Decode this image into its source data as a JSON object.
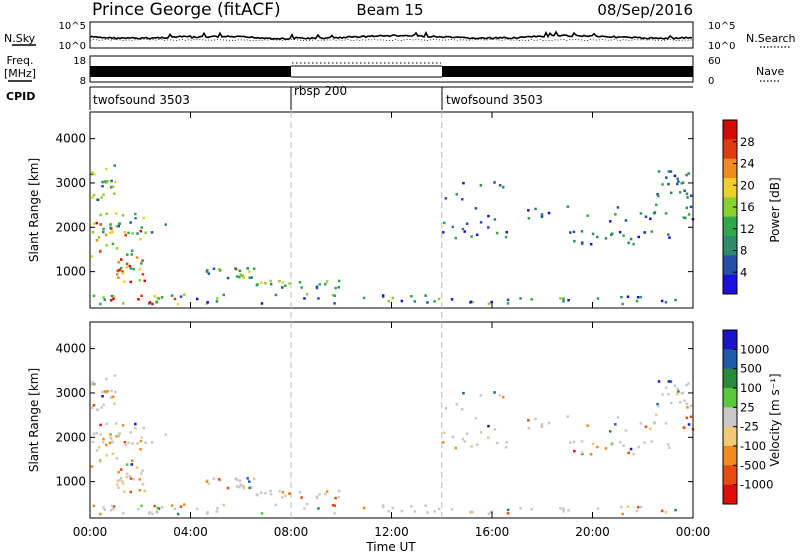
{
  "header": {
    "station": "Prince George (fitACF)",
    "beam": "Beam 15",
    "date": "08/Sep/2016"
  },
  "chart_data": [
    {
      "type": "line",
      "panel": "noise",
      "left_label": "N.Sky",
      "right_label": "N.Search",
      "left_ticks": [
        "10^5",
        "10^0"
      ],
      "right_ticks": [
        "10^5",
        "10^0"
      ],
      "xlim": [
        0,
        24
      ]
    },
    {
      "type": "line",
      "panel": "frequency",
      "left_label_1": "Freq.",
      "left_label_2": "[MHz]",
      "right_label": "Nave",
      "left_ticks": [
        "18",
        "8"
      ],
      "right_ticks": [
        "60",
        "0"
      ],
      "xlim": [
        0,
        24
      ]
    },
    {
      "type": "table",
      "panel": "cpid",
      "label": "CPID",
      "segments": [
        {
          "name": "twofsound 3503",
          "start": 0,
          "end": 8
        },
        {
          "name": "rbsp 200",
          "start": 8,
          "end": 14
        },
        {
          "name": "twofsound 3503",
          "start": 14,
          "end": 24
        }
      ]
    },
    {
      "type": "heatmap",
      "panel": "power",
      "ylabel": "Slant Range [km]",
      "yticks": [
        "4000",
        "3000",
        "2000",
        "1000"
      ],
      "ylim": [
        180,
        4600
      ],
      "colorbar_label": "Power [dB]",
      "colorbar_ticks": [
        "28",
        "24",
        "20",
        "16",
        "12",
        "8",
        "4"
      ],
      "colors": [
        "#1a10e0",
        "#2450a8",
        "#2e8a6a",
        "#2ea84a",
        "#8ad030",
        "#f0d028",
        "#f08a1a",
        "#e03a12",
        "#d40808"
      ]
    },
    {
      "type": "heatmap",
      "panel": "velocity",
      "ylabel": "Slant Range [km]",
      "yticks": [
        "4000",
        "3000",
        "2000",
        "1000"
      ],
      "ylim": [
        180,
        4600
      ],
      "colorbar_label": "Velocity [m s⁻¹]",
      "colorbar_ticks": [
        "1000",
        "500",
        "100",
        "25",
        "-25",
        "-100",
        "-500",
        "-1000"
      ],
      "colors": [
        "#1b14c8",
        "#1e5aa8",
        "#2a8a3c",
        "#5ac83c",
        "#c8c8c8",
        "#f0c878",
        "#f08a1a",
        "#e84a14",
        "#e00c0c"
      ],
      "xlabel": "Time UT",
      "xticks": [
        "00:00",
        "04:00",
        "08:00",
        "12:00",
        "16:00",
        "20:00",
        "00:00"
      ],
      "xlim": [
        0,
        24
      ]
    }
  ]
}
